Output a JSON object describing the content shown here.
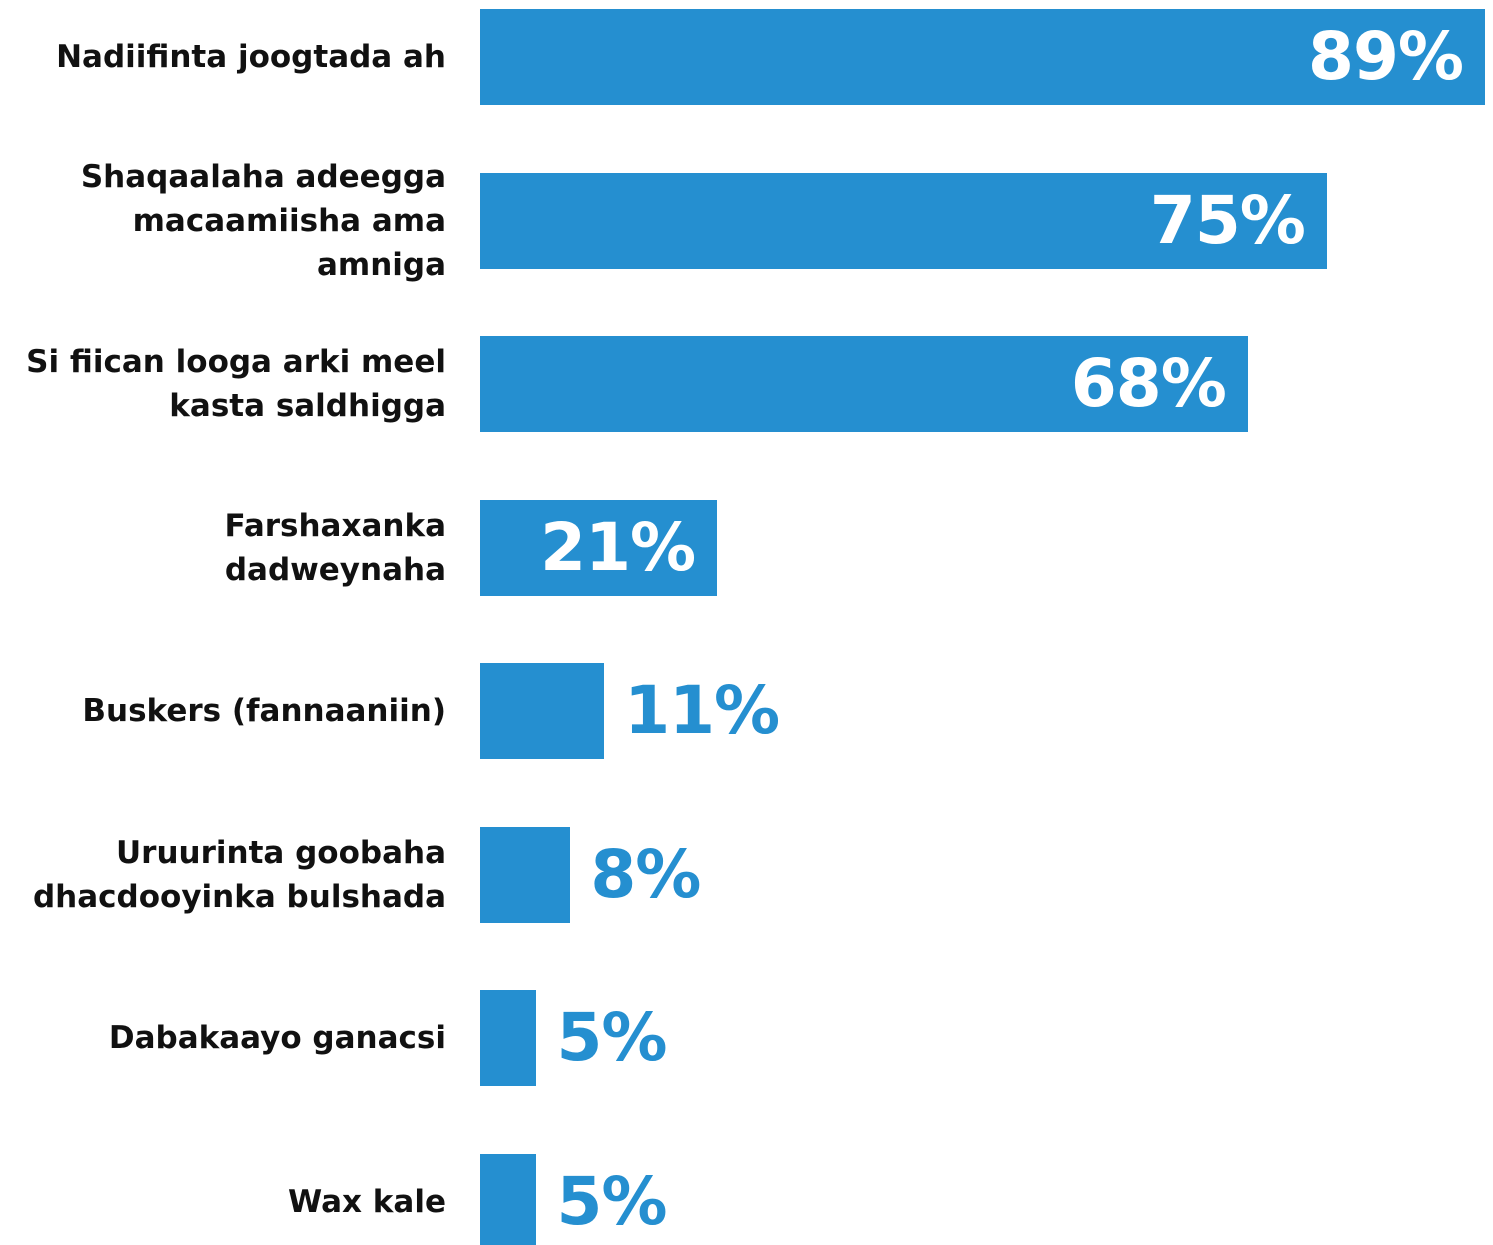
{
  "chart_data": {
    "type": "bar",
    "orientation": "horizontal",
    "color": "#258fd0",
    "categories": [
      "Nadiifinta joogtada ah",
      "Shaqaalaha adeegga\nmacaamiisha ama amniga",
      "Si fiican looga arki meel\nkasta saldhigga",
      "Farshaxanka dadweynaha",
      "Buskers (fannaaniin)",
      "Uruurinta goobaha\ndhacdooyinka bulshada",
      "Dabakaayo ganacsi",
      "Wax kale"
    ],
    "values": [
      89,
      75,
      68,
      21,
      11,
      8,
      5,
      5
    ],
    "value_labels": [
      "89%",
      "75%",
      "68%",
      "21%",
      "11%",
      "8%",
      "5%",
      "5%"
    ]
  }
}
